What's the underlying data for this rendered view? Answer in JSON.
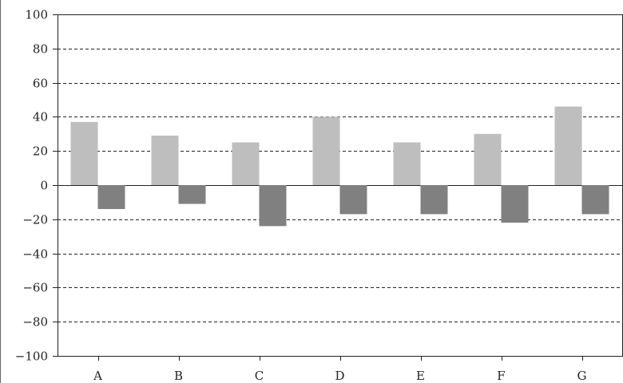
{
  "chart_data": {
    "type": "bar",
    "title": "",
    "xlabel": "",
    "ylabel": "",
    "categories": [
      "A",
      "B",
      "C",
      "D",
      "E",
      "F",
      "G"
    ],
    "series": [
      {
        "values": [
          37,
          29,
          25,
          40,
          25,
          30,
          46
        ],
        "color": "#bebebe"
      },
      {
        "values": [
          -14,
          -11,
          -24,
          -17,
          -17,
          -22,
          -17
        ],
        "color": "#808080"
      }
    ],
    "ylim": [
      -100,
      100
    ],
    "yticks": [
      100,
      80,
      60,
      40,
      20,
      0,
      -20,
      -40,
      -60,
      -80,
      -100
    ],
    "ytick_labels": [
      "100",
      "80",
      "60",
      "40",
      "20",
      "0",
      "−20",
      "−40",
      "−60",
      "−80",
      "−100"
    ],
    "grid": "dashed horizontal",
    "legend": "none"
  }
}
